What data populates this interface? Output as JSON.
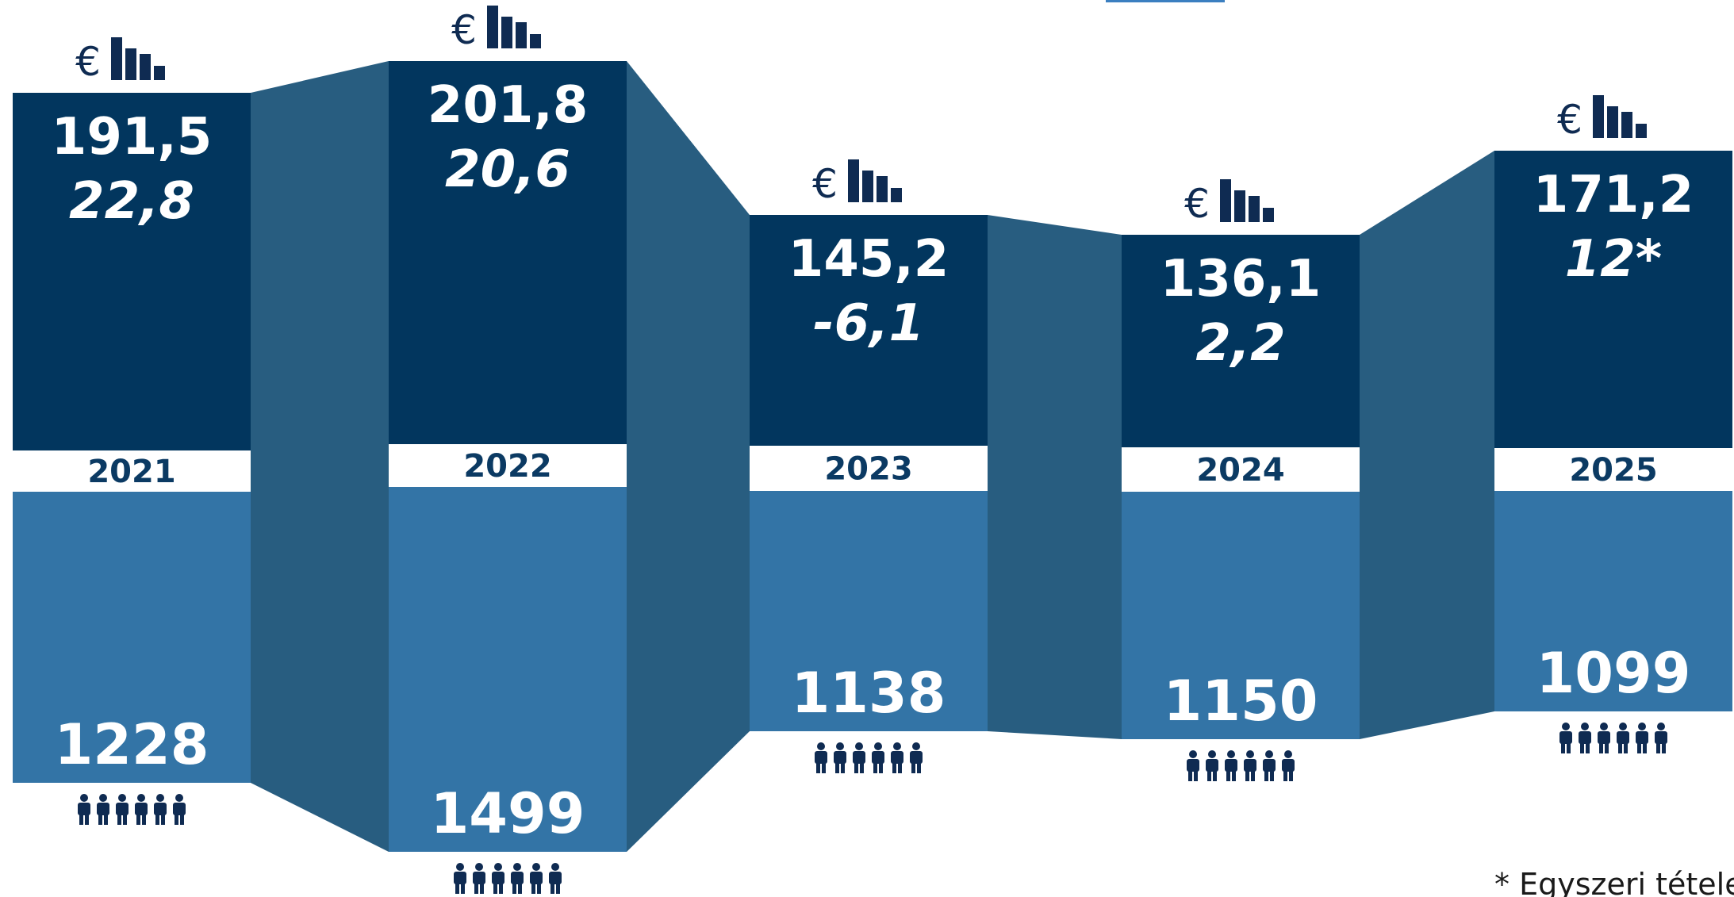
{
  "colors": {
    "revenue_box": "#02365e",
    "employee_box": "#3374a6",
    "connector": "#285d80",
    "icon": "#0f2b52",
    "year_text": "#0b3a63",
    "accent_line": "#3b7fc0"
  },
  "icons": {
    "revenue": "euro-bar-chart-icon",
    "employees": "people-group-icon"
  },
  "chart_data": {
    "type": "bar",
    "categories": [
      "2021",
      "2022",
      "2023",
      "2024",
      "2025"
    ],
    "series": [
      {
        "values": [
          "191,5",
          "201,8",
          "145,2",
          "136,1",
          "171,2"
        ]
      },
      {
        "values": [
          "22,8",
          "20,6",
          "-6,1",
          "2,2",
          "12*"
        ]
      },
      {
        "values": [
          1228,
          1499,
          1138,
          1150,
          1099
        ]
      }
    ],
    "footnote": "* Egyszeri tételekkel"
  }
}
